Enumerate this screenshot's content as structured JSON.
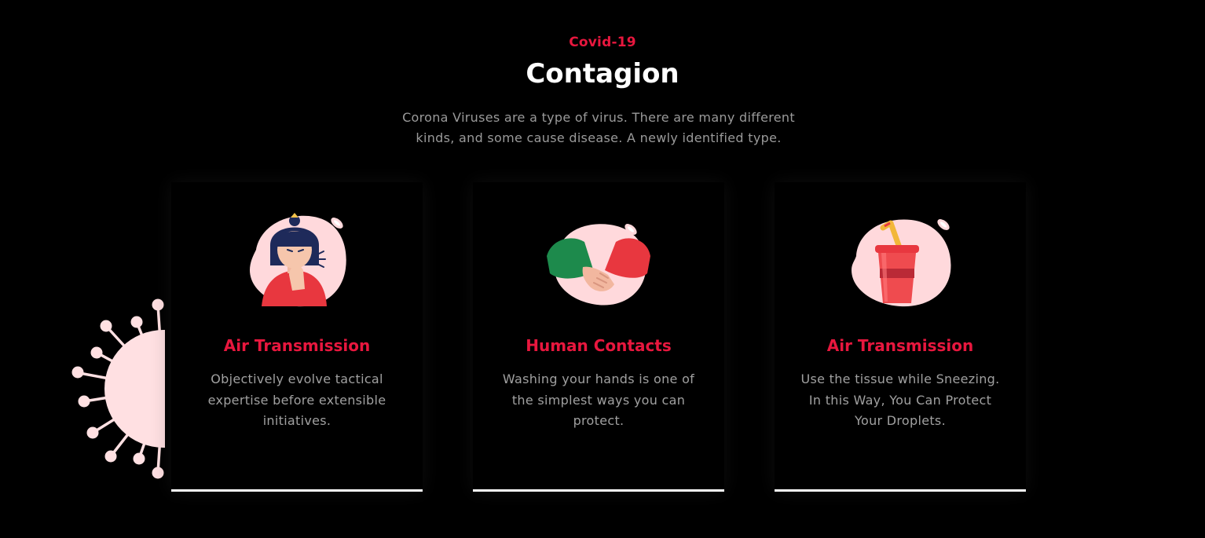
{
  "header": {
    "eyebrow": "Covid-19",
    "title": "Contagion",
    "intro": "Corona Viruses are a type of virus. There are many different kinds, and some cause disease. A newly identified type."
  },
  "cards": [
    {
      "icon": "sneezing-woman-icon",
      "title": "Air Transmission",
      "text": "Objectively evolve tactical expertise before extensible initiatives."
    },
    {
      "icon": "handshake-icon",
      "title": "Human Contacts",
      "text": "Washing your hands is one of the simplest ways you can protect."
    },
    {
      "icon": "drink-cup-icon",
      "title": "Air Transmission",
      "text": "Use the tissue while Sneezing. In this Way, You Can Protect Your Droplets."
    }
  ],
  "colors": {
    "accent": "#e8173e",
    "background": "#000000",
    "virus": "#ffe0e2",
    "blob": "#ffd6da"
  }
}
